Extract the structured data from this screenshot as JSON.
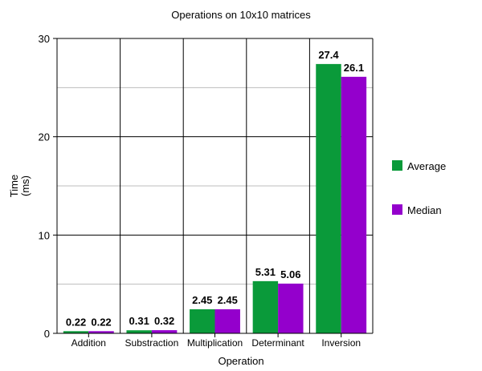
{
  "chart_data": {
    "type": "bar",
    "title": "Operations on 10x10 matrices",
    "xlabel": "Operation",
    "ylabel_lines": [
      "Time",
      "(ms)"
    ],
    "categories": [
      "Addition",
      "Substraction",
      "Multiplication",
      "Determinant",
      "Inversion"
    ],
    "series": [
      {
        "name": "Average",
        "color": "#0a9a3a",
        "values": [
          0.22,
          0.31,
          2.45,
          5.31,
          27.4
        ],
        "labels": [
          "0.22",
          "0.31",
          "2.45",
          "5.31",
          "27.4"
        ]
      },
      {
        "name": "Median",
        "color": "#9400cc",
        "values": [
          0.22,
          0.32,
          2.45,
          5.06,
          26.1
        ],
        "labels": [
          "0.22",
          "0.32",
          "2.45",
          "5.06",
          "26.1"
        ]
      }
    ],
    "ylim": [
      0,
      30
    ],
    "yticks": [
      0,
      10,
      20,
      30
    ],
    "ytick_labels": [
      "0",
      "10",
      "20",
      "30"
    ],
    "minor_gridlines": [
      5,
      15,
      25
    ],
    "legend_position": "right",
    "grid": true
  }
}
